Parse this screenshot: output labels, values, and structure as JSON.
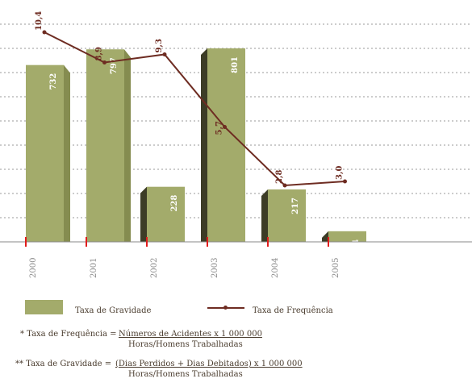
{
  "chart_data": {
    "type": "bar+line",
    "categories": [
      "2000",
      "2001",
      "2002",
      "2003",
      "2004",
      "2005"
    ],
    "series": [
      {
        "name": "Taxa de Gravidade",
        "type": "bar",
        "values": [
          732,
          797,
          228,
          801,
          217,
          44
        ],
        "labels": [
          "732",
          "797",
          "228",
          "801",
          "217",
          "44"
        ]
      },
      {
        "name": "Taxa de Frequência",
        "type": "line",
        "values": [
          10.4,
          8.9,
          9.3,
          5.7,
          2.8,
          3.0
        ],
        "labels": [
          "10,4",
          "8,9",
          "9,3",
          "5,7",
          "2,8",
          "3,0"
        ]
      }
    ],
    "grid": true,
    "legend": "bottom",
    "colors": {
      "bar": "#a3ab6b",
      "bar_side": "#858c50",
      "bar_dark": "#3c3c26",
      "line": "#6e2c22",
      "tick": "#e11c1c",
      "grid": "#9a9a9a"
    }
  },
  "legend": {
    "gravidade_label": "Taxa de Gravidade",
    "frequencia_label": "Taxa de Frequência"
  },
  "notes": {
    "freq_prefix": "* Taxa de Frequência =",
    "freq_numerator": "Números de Acidentes x 1 000 000",
    "freq_denominator": "Horas/Homens Trabalhadas",
    "grav_prefix": "** Taxa de Gravidade =",
    "grav_numerator": "(Dias Perdidos + Dias Debitados) x 1 000 000",
    "grav_denominator": "Horas/Homens Trabalhadas"
  }
}
